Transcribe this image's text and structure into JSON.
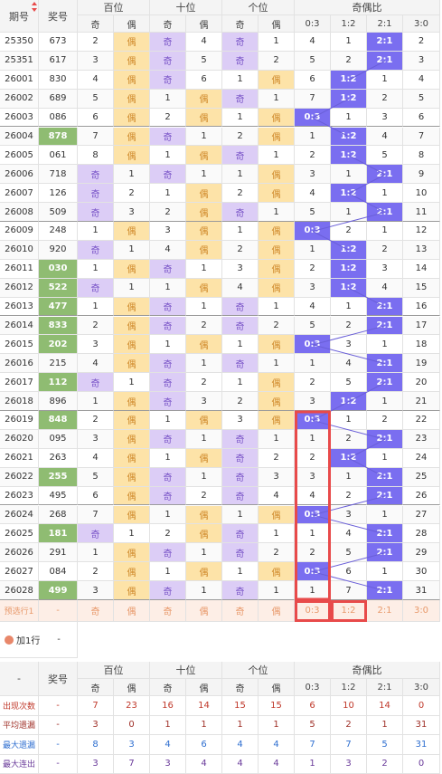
{
  "header": {
    "issue": "期号",
    "number": "奖号",
    "groups": [
      "百位",
      "十位",
      "个位",
      "奇偶比"
    ],
    "sub": [
      "奇",
      "偶",
      "奇",
      "偶",
      "奇",
      "偶",
      "0:3",
      "1:2",
      "2:1",
      "3:0"
    ]
  },
  "rows": [
    {
      "issue": "25350",
      "number": "673",
      "cells": [
        2,
        "偶",
        "奇",
        4,
        "奇",
        1,
        4,
        1,
        "2:1",
        2
      ]
    },
    {
      "issue": "25351",
      "number": "617",
      "cells": [
        3,
        "偶",
        "奇",
        5,
        "奇",
        2,
        5,
        2,
        "2:1",
        3
      ]
    },
    {
      "issue": "26001",
      "number": "830",
      "cells": [
        4,
        "偶",
        "奇",
        6,
        1,
        "偶",
        6,
        "1:2",
        1,
        4
      ]
    },
    {
      "issue": "26002",
      "number": "689",
      "cells": [
        5,
        "偶",
        1,
        "偶",
        "奇",
        1,
        7,
        "1:2",
        2,
        5
      ]
    },
    {
      "issue": "26003",
      "number": "086",
      "cells": [
        6,
        "偶",
        2,
        "偶",
        1,
        "偶",
        "0:3",
        1,
        3,
        6
      ]
    },
    {
      "issue": "26004",
      "number": "878",
      "highlight": true,
      "cells": [
        7,
        "偶",
        "奇",
        1,
        2,
        "偶",
        1,
        "1:2",
        4,
        7
      ]
    },
    {
      "issue": "26005",
      "number": "061",
      "cells": [
        8,
        "偶",
        1,
        "偶",
        "奇",
        1,
        2,
        "1:2",
        5,
        8
      ]
    },
    {
      "issue": "26006",
      "number": "718",
      "cells": [
        "奇",
        1,
        "奇",
        1,
        1,
        "偶",
        3,
        1,
        "2:1",
        9
      ]
    },
    {
      "issue": "26007",
      "number": "126",
      "cells": [
        "奇",
        2,
        1,
        "偶",
        2,
        "偶",
        4,
        "1:2",
        1,
        10
      ]
    },
    {
      "issue": "26008",
      "number": "509",
      "cells": [
        "奇",
        3,
        2,
        "偶",
        "奇",
        1,
        5,
        1,
        "2:1",
        11
      ]
    },
    {
      "issue": "26009",
      "number": "248",
      "cells": [
        1,
        "偶",
        3,
        "偶",
        1,
        "偶",
        "0:3",
        2,
        1,
        12
      ]
    },
    {
      "issue": "26010",
      "number": "920",
      "cells": [
        "奇",
        1,
        4,
        "偶",
        2,
        "偶",
        1,
        "1:2",
        2,
        13
      ]
    },
    {
      "issue": "26011",
      "number": "030",
      "highlight": true,
      "cells": [
        1,
        "偶",
        "奇",
        1,
        3,
        "偶",
        2,
        "1:2",
        3,
        14
      ]
    },
    {
      "issue": "26012",
      "number": "522",
      "highlight": true,
      "cells": [
        "奇",
        1,
        1,
        "偶",
        4,
        "偶",
        3,
        "1:2",
        4,
        15
      ]
    },
    {
      "issue": "26013",
      "number": "477",
      "highlight": true,
      "cells": [
        1,
        "偶",
        "奇",
        1,
        "奇",
        1,
        4,
        1,
        "2:1",
        16
      ]
    },
    {
      "issue": "26014",
      "number": "833",
      "highlight": true,
      "cells": [
        2,
        "偶",
        "奇",
        2,
        "奇",
        2,
        5,
        2,
        "2:1",
        17
      ]
    },
    {
      "issue": "26015",
      "number": "202",
      "highlight": true,
      "cells": [
        3,
        "偶",
        1,
        "偶",
        1,
        "偶",
        "0:3",
        3,
        1,
        18
      ]
    },
    {
      "issue": "26016",
      "number": "215",
      "cells": [
        4,
        "偶",
        "奇",
        1,
        "奇",
        1,
        1,
        4,
        "2:1",
        19
      ]
    },
    {
      "issue": "26017",
      "number": "112",
      "highlight": true,
      "cells": [
        "奇",
        1,
        "奇",
        2,
        1,
        "偶",
        2,
        5,
        "2:1",
        20
      ]
    },
    {
      "issue": "26018",
      "number": "896",
      "cells": [
        1,
        "偶",
        "奇",
        3,
        2,
        "偶",
        3,
        "1:2",
        1,
        21
      ]
    },
    {
      "issue": "26019",
      "number": "848",
      "highlight": true,
      "cells": [
        2,
        "偶",
        1,
        "偶",
        3,
        "偶",
        "0:3",
        1,
        2,
        22
      ]
    },
    {
      "issue": "26020",
      "number": "095",
      "cells": [
        3,
        "偶",
        "奇",
        1,
        "奇",
        1,
        1,
        2,
        "2:1",
        23
      ]
    },
    {
      "issue": "26021",
      "number": "263",
      "cells": [
        4,
        "偶",
        1,
        "偶",
        "奇",
        2,
        2,
        "1:2",
        1,
        24
      ]
    },
    {
      "issue": "26022",
      "number": "255",
      "highlight": true,
      "cells": [
        5,
        "偶",
        "奇",
        1,
        "奇",
        3,
        3,
        1,
        "2:1",
        25
      ]
    },
    {
      "issue": "26023",
      "number": "495",
      "cells": [
        6,
        "偶",
        "奇",
        2,
        "奇",
        4,
        4,
        2,
        "2:1",
        26
      ]
    },
    {
      "issue": "26024",
      "number": "268",
      "cells": [
        7,
        "偶",
        1,
        "偶",
        1,
        "偶",
        "0:3",
        3,
        1,
        27
      ]
    },
    {
      "issue": "26025",
      "number": "181",
      "highlight": true,
      "cells": [
        "奇",
        1,
        2,
        "偶",
        "奇",
        1,
        1,
        4,
        "2:1",
        28
      ]
    },
    {
      "issue": "26026",
      "number": "291",
      "cells": [
        1,
        "偶",
        "奇",
        1,
        "奇",
        2,
        2,
        5,
        "2:1",
        29
      ]
    },
    {
      "issue": "26027",
      "number": "084",
      "cells": [
        2,
        "偶",
        1,
        "偶",
        1,
        "偶",
        "0:3",
        6,
        1,
        30
      ]
    },
    {
      "issue": "26028",
      "number": "499",
      "highlight": true,
      "cells": [
        3,
        "偶",
        "奇",
        1,
        "奇",
        1,
        1,
        7,
        "2:1",
        31
      ]
    }
  ],
  "preview": {
    "label": "预选行1",
    "number": "-",
    "cells": [
      "奇",
      "偶",
      "奇",
      "偶",
      "奇",
      "偶",
      "0:3",
      "1:2",
      "2:1",
      "3:0"
    ]
  },
  "add_row": {
    "label": "加1行",
    "value": "-"
  },
  "stats_header": {
    "issue": "-",
    "number": "奖号",
    "groups": [
      "百位",
      "十位",
      "个位",
      "奇偶比"
    ],
    "sub": [
      "奇",
      "偶",
      "奇",
      "偶",
      "奇",
      "偶",
      "0:3",
      "1:2",
      "2:1",
      "3:0"
    ]
  },
  "stats": [
    {
      "label": "出现次数",
      "number": "-",
      "values": [
        7,
        23,
        16,
        14,
        15,
        15,
        6,
        10,
        14,
        0
      ]
    },
    {
      "label": "平均遗漏",
      "number": "-",
      "values": [
        3,
        0,
        1,
        1,
        1,
        1,
        5,
        2,
        1,
        31
      ]
    },
    {
      "label": "最大遗漏",
      "number": "-",
      "values": [
        8,
        3,
        4,
        6,
        4,
        4,
        7,
        7,
        5,
        31
      ]
    },
    {
      "label": "最大连出",
      "number": "-",
      "values": [
        3,
        7,
        3,
        4,
        4,
        4,
        1,
        3,
        2,
        0
      ]
    }
  ]
}
